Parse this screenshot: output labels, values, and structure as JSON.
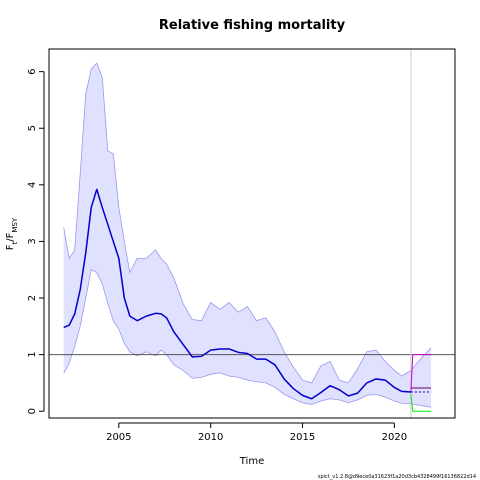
{
  "chart_data": {
    "type": "line",
    "title": "Relative fishing mortality",
    "xlabel": "Time",
    "ylabel": "F_t/F_MSY",
    "xlim": [
      2001.2,
      2023.3
    ],
    "ylim": [
      -0.12,
      6.4
    ],
    "x_ticks": [
      2005,
      2010,
      2015,
      2020
    ],
    "y_ticks": [
      0,
      1,
      2,
      3,
      4,
      5,
      6
    ],
    "reference_line": 1.0,
    "forecast_start": 2020.9,
    "footnote": "spict_v1.2.8@d9ece0a31623f1a20d3cb4328499f16136822d14",
    "colors": {
      "estimate": "#0000cc",
      "ci_fill": "#e0e0ff",
      "ci_border": "#9999ee",
      "reference": "#555555",
      "forecast_divider": "#cccccc",
      "forecast_upper": "#cc00cc",
      "forecast_mid": "#660066",
      "forecast_lower": "#00ee00"
    },
    "series": [
      {
        "x": [
          2002.0,
          2002.3,
          2002.6,
          2002.9,
          2003.2,
          2003.5,
          2003.8,
          2004.1,
          2004.4,
          2004.7,
          2005.0,
          2005.3,
          2005.6,
          2006.0,
          2006.5,
          2007.0,
          2007.3,
          2007.6,
          2008.0,
          2008.5,
          2009.0,
          2009.5,
          2010.0,
          2010.5,
          2011.0,
          2011.5,
          2012.0,
          2012.5,
          2013.0,
          2013.5,
          2014.0,
          2014.5,
          2015.0,
          2015.5,
          2016.0,
          2016.5,
          2017.0,
          2017.5,
          2018.0,
          2018.5,
          2019.0,
          2019.5,
          2020.0,
          2020.4,
          2020.9
        ],
        "values": [
          1.48,
          1.52,
          1.72,
          2.15,
          2.8,
          3.6,
          3.92,
          3.6,
          3.3,
          3.0,
          2.7,
          2.0,
          1.68,
          1.6,
          1.68,
          1.73,
          1.72,
          1.65,
          1.4,
          1.18,
          0.96,
          0.97,
          1.08,
          1.1,
          1.1,
          1.04,
          1.02,
          0.92,
          0.92,
          0.82,
          0.57,
          0.4,
          0.28,
          0.22,
          0.33,
          0.45,
          0.38,
          0.27,
          0.32,
          0.5,
          0.57,
          0.55,
          0.42,
          0.35,
          0.34
        ]
      }
    ],
    "ci": {
      "x": [
        2002.0,
        2002.3,
        2002.6,
        2002.9,
        2003.2,
        2003.5,
        2003.8,
        2004.1,
        2004.4,
        2004.7,
        2005.0,
        2005.3,
        2005.6,
        2006.0,
        2006.5,
        2007.0,
        2007.3,
        2007.6,
        2008.0,
        2008.5,
        2009.0,
        2009.5,
        2010.0,
        2010.5,
        2011.0,
        2011.5,
        2012.0,
        2012.5,
        2013.0,
        2013.5,
        2014.0,
        2014.5,
        2015.0,
        2015.5,
        2016.0,
        2016.5,
        2017.0,
        2017.5,
        2018.0,
        2018.5,
        2019.0,
        2019.5,
        2020.0,
        2020.4,
        2020.9,
        2021.5,
        2022.0
      ],
      "upper": [
        3.25,
        2.7,
        2.85,
        4.2,
        5.6,
        6.05,
        6.15,
        5.9,
        4.6,
        4.55,
        3.6,
        3.0,
        2.45,
        2.7,
        2.7,
        2.85,
        2.7,
        2.6,
        2.35,
        1.9,
        1.62,
        1.6,
        1.92,
        1.8,
        1.92,
        1.75,
        1.85,
        1.6,
        1.65,
        1.4,
        1.05,
        0.78,
        0.55,
        0.5,
        0.8,
        0.88,
        0.55,
        0.5,
        0.75,
        1.05,
        1.08,
        0.88,
        0.72,
        0.62,
        0.72,
        0.95,
        1.12
      ],
      "lower": [
        0.67,
        0.85,
        1.15,
        1.5,
        2.0,
        2.5,
        2.45,
        2.25,
        1.9,
        1.6,
        1.45,
        1.2,
        1.05,
        0.98,
        1.05,
        0.98,
        1.08,
        1.0,
        0.82,
        0.72,
        0.58,
        0.6,
        0.65,
        0.68,
        0.62,
        0.6,
        0.55,
        0.52,
        0.5,
        0.42,
        0.3,
        0.22,
        0.15,
        0.12,
        0.18,
        0.22,
        0.2,
        0.15,
        0.2,
        0.28,
        0.3,
        0.25,
        0.18,
        0.14,
        0.13,
        0.1,
        0.07
      ]
    },
    "forecast_lines": [
      {
        "role": "upper",
        "x": [
          2020.9,
          2021.0,
          2022.0
        ],
        "values": [
          0.35,
          1.0,
          1.0
        ]
      },
      {
        "role": "mid",
        "x": [
          2020.9,
          2022.0
        ],
        "values": [
          0.41,
          0.41
        ]
      },
      {
        "role": "lower",
        "x": [
          2020.9,
          2021.0,
          2022.0
        ],
        "values": [
          0.3,
          0.0,
          0.0
        ]
      },
      {
        "role": "central",
        "x": [
          2020.9,
          2022.0
        ],
        "values": [
          0.34,
          0.34
        ]
      }
    ]
  }
}
